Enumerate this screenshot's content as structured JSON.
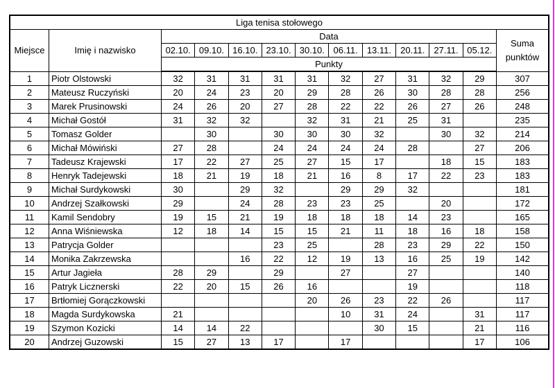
{
  "table": {
    "title": "Liga tenisa stołowego",
    "headers": {
      "rank": "Miejsce",
      "name": "Imię i nazwisko",
      "date_group": "Data",
      "dates": [
        "02.10.",
        "09.10.",
        "16.10.",
        "23.10.",
        "30.10.",
        "06.11.",
        "13.11.",
        "20.11.",
        "27.11.",
        "05.12."
      ],
      "points": "Punkty",
      "total": "Suma punktów"
    },
    "rows": [
      {
        "rank": 1,
        "name": "Piotr Olstowski",
        "points": [
          32,
          31,
          31,
          31,
          31,
          32,
          27,
          31,
          32,
          29
        ],
        "total": 307
      },
      {
        "rank": 2,
        "name": "Mateusz Ruczyński",
        "points": [
          20,
          24,
          23,
          20,
          29,
          28,
          26,
          30,
          28,
          28
        ],
        "total": 256
      },
      {
        "rank": 3,
        "name": "Marek Prusinowski",
        "points": [
          24,
          26,
          20,
          27,
          28,
          22,
          22,
          26,
          27,
          26
        ],
        "total": 248
      },
      {
        "rank": 4,
        "name": "Michał Gostół",
        "points": [
          31,
          32,
          32,
          null,
          32,
          31,
          21,
          25,
          31,
          null
        ],
        "total": 235
      },
      {
        "rank": 5,
        "name": "Tomasz Golder",
        "points": [
          null,
          30,
          null,
          30,
          30,
          30,
          32,
          null,
          30,
          32
        ],
        "total": 214
      },
      {
        "rank": 6,
        "name": "Michał Mówiński",
        "points": [
          27,
          28,
          null,
          24,
          24,
          24,
          24,
          28,
          null,
          27
        ],
        "total": 206
      },
      {
        "rank": 7,
        "name": "Tadeusz Krajewski",
        "points": [
          17,
          22,
          27,
          25,
          27,
          15,
          17,
          null,
          18,
          15
        ],
        "total": 183
      },
      {
        "rank": 8,
        "name": "Henryk Tadejewski",
        "points": [
          18,
          21,
          19,
          18,
          21,
          16,
          8,
          17,
          22,
          23
        ],
        "total": 183
      },
      {
        "rank": 9,
        "name": "Michał Surdykowski",
        "points": [
          30,
          null,
          29,
          32,
          null,
          29,
          29,
          32,
          null,
          null
        ],
        "total": 181
      },
      {
        "rank": 10,
        "name": "Andrzej Szałkowski",
        "points": [
          29,
          null,
          24,
          28,
          23,
          23,
          25,
          null,
          20,
          null
        ],
        "total": 172
      },
      {
        "rank": 11,
        "name": "Kamil Sendobry",
        "points": [
          19,
          15,
          21,
          19,
          18,
          18,
          18,
          14,
          23,
          null
        ],
        "total": 165
      },
      {
        "rank": 12,
        "name": "Anna Wiśniewska",
        "points": [
          12,
          18,
          14,
          15,
          15,
          21,
          11,
          18,
          16,
          18
        ],
        "total": 158
      },
      {
        "rank": 13,
        "name": "Patrycja Golder",
        "points": [
          null,
          null,
          null,
          23,
          25,
          null,
          28,
          23,
          29,
          22
        ],
        "total": 150
      },
      {
        "rank": 14,
        "name": "Monika Zakrzewska",
        "points": [
          null,
          null,
          16,
          22,
          12,
          19,
          13,
          16,
          25,
          19
        ],
        "total": 142
      },
      {
        "rank": 15,
        "name": "Artur Jagieła",
        "points": [
          28,
          29,
          null,
          29,
          null,
          27,
          null,
          27,
          null,
          null
        ],
        "total": 140
      },
      {
        "rank": 16,
        "name": "Patryk Licznerski",
        "points": [
          22,
          20,
          15,
          26,
          16,
          null,
          null,
          19,
          null,
          null
        ],
        "total": 118
      },
      {
        "rank": 17,
        "name": "Brtłomiej Gorączkowski",
        "points": [
          null,
          null,
          null,
          null,
          20,
          26,
          23,
          22,
          26,
          null
        ],
        "total": 117
      },
      {
        "rank": 18,
        "name": "Magda Surdykowska",
        "points": [
          21,
          null,
          null,
          null,
          null,
          10,
          31,
          24,
          null,
          31
        ],
        "total": 117
      },
      {
        "rank": 19,
        "name": "Szymon Kozicki",
        "points": [
          14,
          14,
          22,
          null,
          null,
          null,
          30,
          15,
          null,
          21
        ],
        "total": 116
      },
      {
        "rank": 20,
        "name": "Andrzej Guzowski",
        "points": [
          15,
          27,
          13,
          17,
          null,
          17,
          null,
          null,
          null,
          17
        ],
        "total": 106
      }
    ]
  }
}
